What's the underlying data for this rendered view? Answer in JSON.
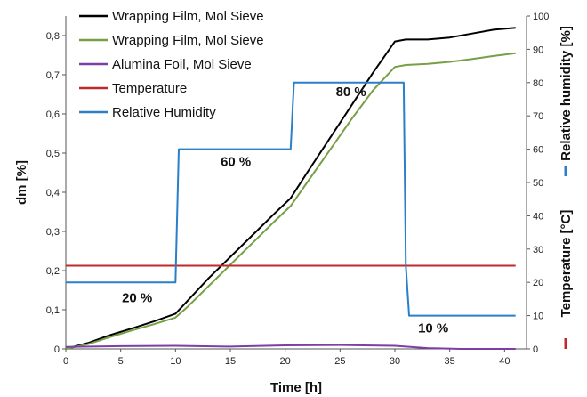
{
  "chart_data": {
    "type": "line",
    "xlabel": "Time [h]",
    "ylabel_left": "dm [%]",
    "ylabel_right": "Temperature [°C] — Relative humidity [%]",
    "ylabel_right_parts": {
      "temperature": "Temperature [°C]",
      "humidity": "Relative humidity [%]"
    },
    "xlim": [
      0,
      42
    ],
    "ylim_left": [
      0,
      0.85
    ],
    "ylim_right": [
      0,
      100
    ],
    "x_ticks": [
      "0",
      "5",
      "10",
      "15",
      "20",
      "25",
      "30",
      "35",
      "40"
    ],
    "y_left_ticks": [
      "0",
      "0,1",
      "0,2",
      "0,3",
      "0,4",
      "0,5",
      "0,6",
      "0,7",
      "0,8"
    ],
    "y_right_ticks": [
      "0",
      "10",
      "20",
      "30",
      "40",
      "50",
      "60",
      "70",
      "80",
      "90",
      "100"
    ],
    "grid": false,
    "legend_position": "top-left",
    "legend": [
      {
        "label": "Wrapping Film, Mol Sieve",
        "color": "#000000"
      },
      {
        "label": "Wrapping Film, Mol Sieve",
        "color": "#77a046"
      },
      {
        "label": "Alumina Foil, Mol Sieve",
        "color": "#7b3fa6"
      },
      {
        "label": "Temperature",
        "color": "#c0282a"
      },
      {
        "label": "Relative Humidity",
        "color": "#2a7fc9"
      }
    ],
    "annotations": [
      {
        "text": "20 %",
        "x": 6.5,
        "y_right": 14
      },
      {
        "text": "60 %",
        "x": 15.5,
        "y_right": 55
      },
      {
        "text": "80 %",
        "x": 26.0,
        "y_right": 76
      },
      {
        "text": "10 %",
        "x": 33.5,
        "y_right": 5
      }
    ],
    "series": [
      {
        "name": "Wrapping Film, Mol Sieve",
        "axis": "left",
        "color": "#000000",
        "x": [
          0,
          2,
          4,
          6,
          8,
          10,
          11,
          13,
          15,
          17,
          19,
          20.5,
          22,
          24,
          26,
          28,
          30,
          31,
          33,
          35,
          37,
          39,
          41
        ],
        "y": [
          0.0,
          0.015,
          0.035,
          0.052,
          0.07,
          0.09,
          0.12,
          0.18,
          0.235,
          0.29,
          0.345,
          0.385,
          0.45,
          0.535,
          0.62,
          0.705,
          0.785,
          0.79,
          0.79,
          0.795,
          0.805,
          0.815,
          0.82
        ]
      },
      {
        "name": "Wrapping Film, Mol Sieve",
        "axis": "left",
        "color": "#77a046",
        "x": [
          0,
          2,
          4,
          6,
          8,
          10,
          11,
          13,
          15,
          17,
          19,
          20.5,
          22,
          24,
          26,
          28,
          30,
          31,
          33,
          35,
          37,
          39,
          41
        ],
        "y": [
          0.0,
          0.012,
          0.03,
          0.047,
          0.063,
          0.08,
          0.105,
          0.16,
          0.215,
          0.27,
          0.325,
          0.365,
          0.425,
          0.505,
          0.585,
          0.66,
          0.72,
          0.725,
          0.728,
          0.733,
          0.74,
          0.748,
          0.755
        ]
      },
      {
        "name": "Alumina Foil, Mol Sieve",
        "axis": "left",
        "color": "#7b3fa6",
        "x": [
          0,
          5,
          10,
          15,
          20,
          25,
          30,
          33,
          36,
          41
        ],
        "y": [
          0.005,
          0.007,
          0.008,
          0.006,
          0.009,
          0.01,
          0.008,
          0.002,
          0.0,
          0.0
        ]
      },
      {
        "name": "Temperature",
        "axis": "right",
        "color": "#c0282a",
        "x": [
          0,
          41
        ],
        "y": [
          25,
          25
        ]
      },
      {
        "name": "Relative Humidity",
        "axis": "right",
        "color": "#2a7fc9",
        "x": [
          0,
          10,
          10.3,
          20.5,
          20.8,
          30.8,
          31,
          31.3,
          41
        ],
        "y": [
          20,
          20,
          60,
          60,
          80,
          80,
          25,
          10,
          10
        ]
      }
    ]
  }
}
